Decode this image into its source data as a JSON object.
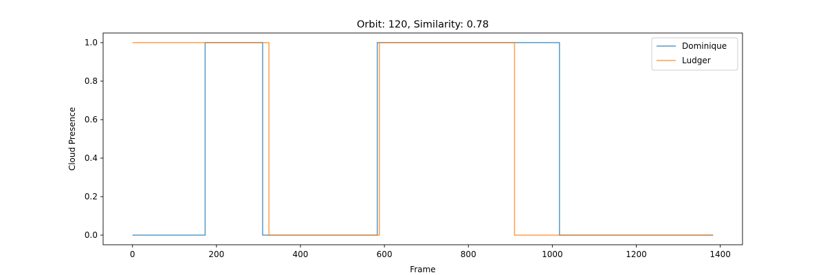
{
  "chart_data": {
    "type": "line",
    "step": "post",
    "title": "Orbit: 120, Similarity: 0.78",
    "xlabel": "Frame",
    "ylabel": "Cloud Presence",
    "xlim": [
      -70,
      1453
    ],
    "ylim": [
      -0.05,
      1.05
    ],
    "xticks": [
      0,
      200,
      400,
      600,
      800,
      1000,
      1200,
      1400
    ],
    "yticks": [
      0.0,
      0.2,
      0.4,
      0.6,
      0.8,
      1.0
    ],
    "xtick_labels": [
      "0",
      "200",
      "400",
      "600",
      "800",
      "1000",
      "1200",
      "1400"
    ],
    "ytick_labels": [
      "0.0",
      "0.2",
      "0.4",
      "0.6",
      "0.8",
      "1.0"
    ],
    "grid": false,
    "legend": "top-right",
    "series": [
      {
        "name": "Dominique",
        "color": "#1f77b4",
        "x": [
          0,
          173,
          310,
          583,
          1017,
          1383
        ],
        "y": [
          0,
          1,
          0,
          1,
          0,
          0
        ]
      },
      {
        "name": "Ludger",
        "color": "#ff7f0e",
        "x": [
          0,
          325,
          588,
          910,
          1383
        ],
        "y": [
          1,
          0,
          1,
          0,
          0
        ]
      }
    ]
  }
}
